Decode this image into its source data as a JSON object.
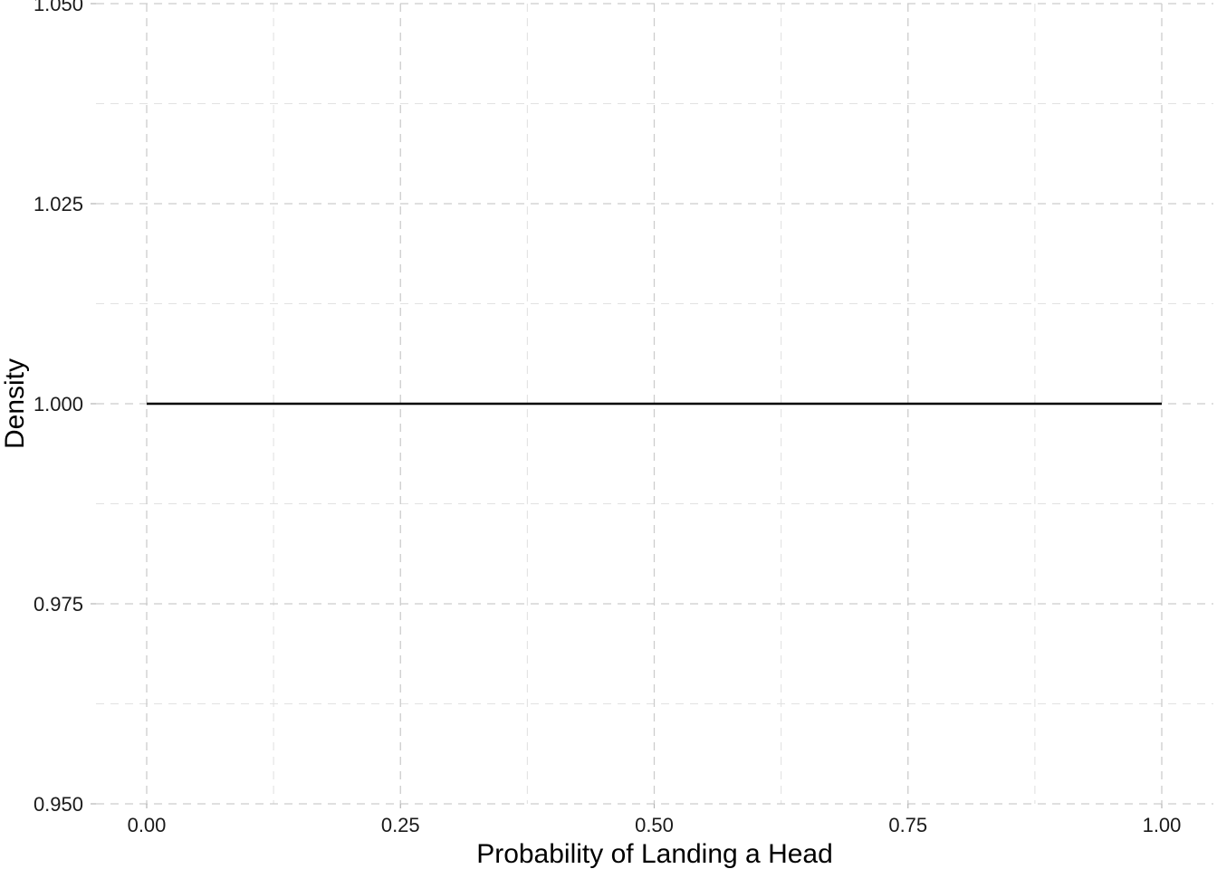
{
  "chart_data": {
    "type": "line",
    "title": "",
    "xlabel": "Probability of Landing a Head",
    "ylabel": "Density",
    "xlim": [
      0.0,
      1.0
    ],
    "ylim": [
      0.95,
      1.05
    ],
    "x_ticks": [
      "0.00",
      "0.25",
      "0.50",
      "0.75",
      "1.00"
    ],
    "x_tick_values": [
      0.0,
      0.25,
      0.5,
      0.75,
      1.0
    ],
    "x_minor_tick_values": [
      0.125,
      0.375,
      0.625,
      0.875
    ],
    "y_ticks": [
      "0.950",
      "0.975",
      "1.000",
      "1.025",
      "1.050"
    ],
    "y_tick_values": [
      0.95,
      0.975,
      1.0,
      1.025,
      1.05
    ],
    "y_minor_tick_values": [
      0.9625,
      0.9875,
      1.0125,
      1.0375
    ],
    "grid": true,
    "grid_style": "dashed",
    "legend": "none",
    "line_color": "#000000",
    "series": [
      {
        "x": [
          0.0,
          1.0
        ],
        "y": [
          1.0,
          1.0
        ]
      }
    ]
  }
}
